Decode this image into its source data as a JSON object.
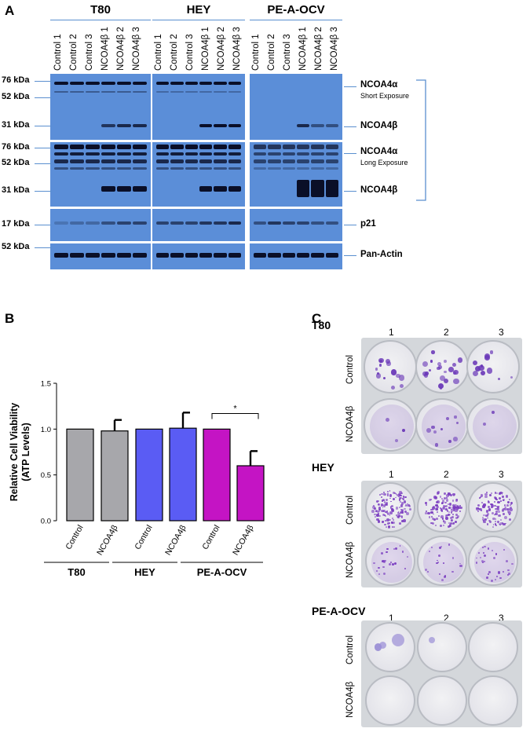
{
  "panel_a": {
    "letter": "A",
    "groups": [
      "T80",
      "HEY",
      "PE-A-OCV"
    ],
    "lanes": [
      "Control 1",
      "Control 2",
      "Control 3",
      "NCOA4β 1",
      "NCOA4β 2",
      "NCOA4β 3"
    ],
    "kda_labels": [
      "76 kDa",
      "52 kDa",
      "31 kDa",
      "76 kDa",
      "52 kDa",
      "31 kDa",
      "17 kDa",
      "52 kDa"
    ],
    "proteins": {
      "short_alpha": "NCOA4α",
      "short_exposure": "Short Exposure",
      "short_beta": "NCOA4β",
      "long_alpha": "NCOA4α",
      "long_exposure": "Long Exposure",
      "long_beta": "NCOA4β",
      "p21": "p21",
      "actin": "Pan-Actin"
    }
  },
  "panel_b": {
    "letter": "B",
    "significance": "*",
    "group_labels": [
      "T80",
      "HEY",
      "PE-A-OCV"
    ]
  },
  "chart_data": {
    "type": "bar",
    "ylabel": "Relative Cell Viability\n(ATP Levels)",
    "ylabel_lines": [
      "Relative Cell Viability",
      "(ATP Levels)"
    ],
    "ylim": [
      0.0,
      1.5
    ],
    "yticks": [
      "0.0",
      "0.5",
      "1.0",
      "1.5"
    ],
    "categories": [
      "Control",
      "NCOA4β",
      "Control",
      "NCOA4β",
      "Control",
      "NCOA4β"
    ],
    "groups": [
      "T80",
      "T80",
      "HEY",
      "HEY",
      "PE-A-OCV",
      "PE-A-OCV"
    ],
    "values": [
      1.0,
      0.98,
      1.0,
      1.01,
      1.0,
      0.6
    ],
    "errors": [
      0,
      0.12,
      0,
      0.17,
      0,
      0.16
    ],
    "colors": [
      "#a7a7ab",
      "#a7a7ab",
      "#5a5cf4",
      "#5a5cf4",
      "#c414c4",
      "#c414c4"
    ],
    "grid": false
  },
  "panel_c": {
    "letter": "C",
    "col_labels": [
      "1",
      "2",
      "3"
    ],
    "row_labels": [
      "Control",
      "NCOA4β"
    ],
    "plates": [
      {
        "title": "T80",
        "colony_color": "#6a38b8"
      },
      {
        "title": "HEY",
        "colony_color": "#7a3cc0"
      },
      {
        "title": "PE-A-OCV",
        "colony_color": "#9b8fd6"
      }
    ]
  }
}
